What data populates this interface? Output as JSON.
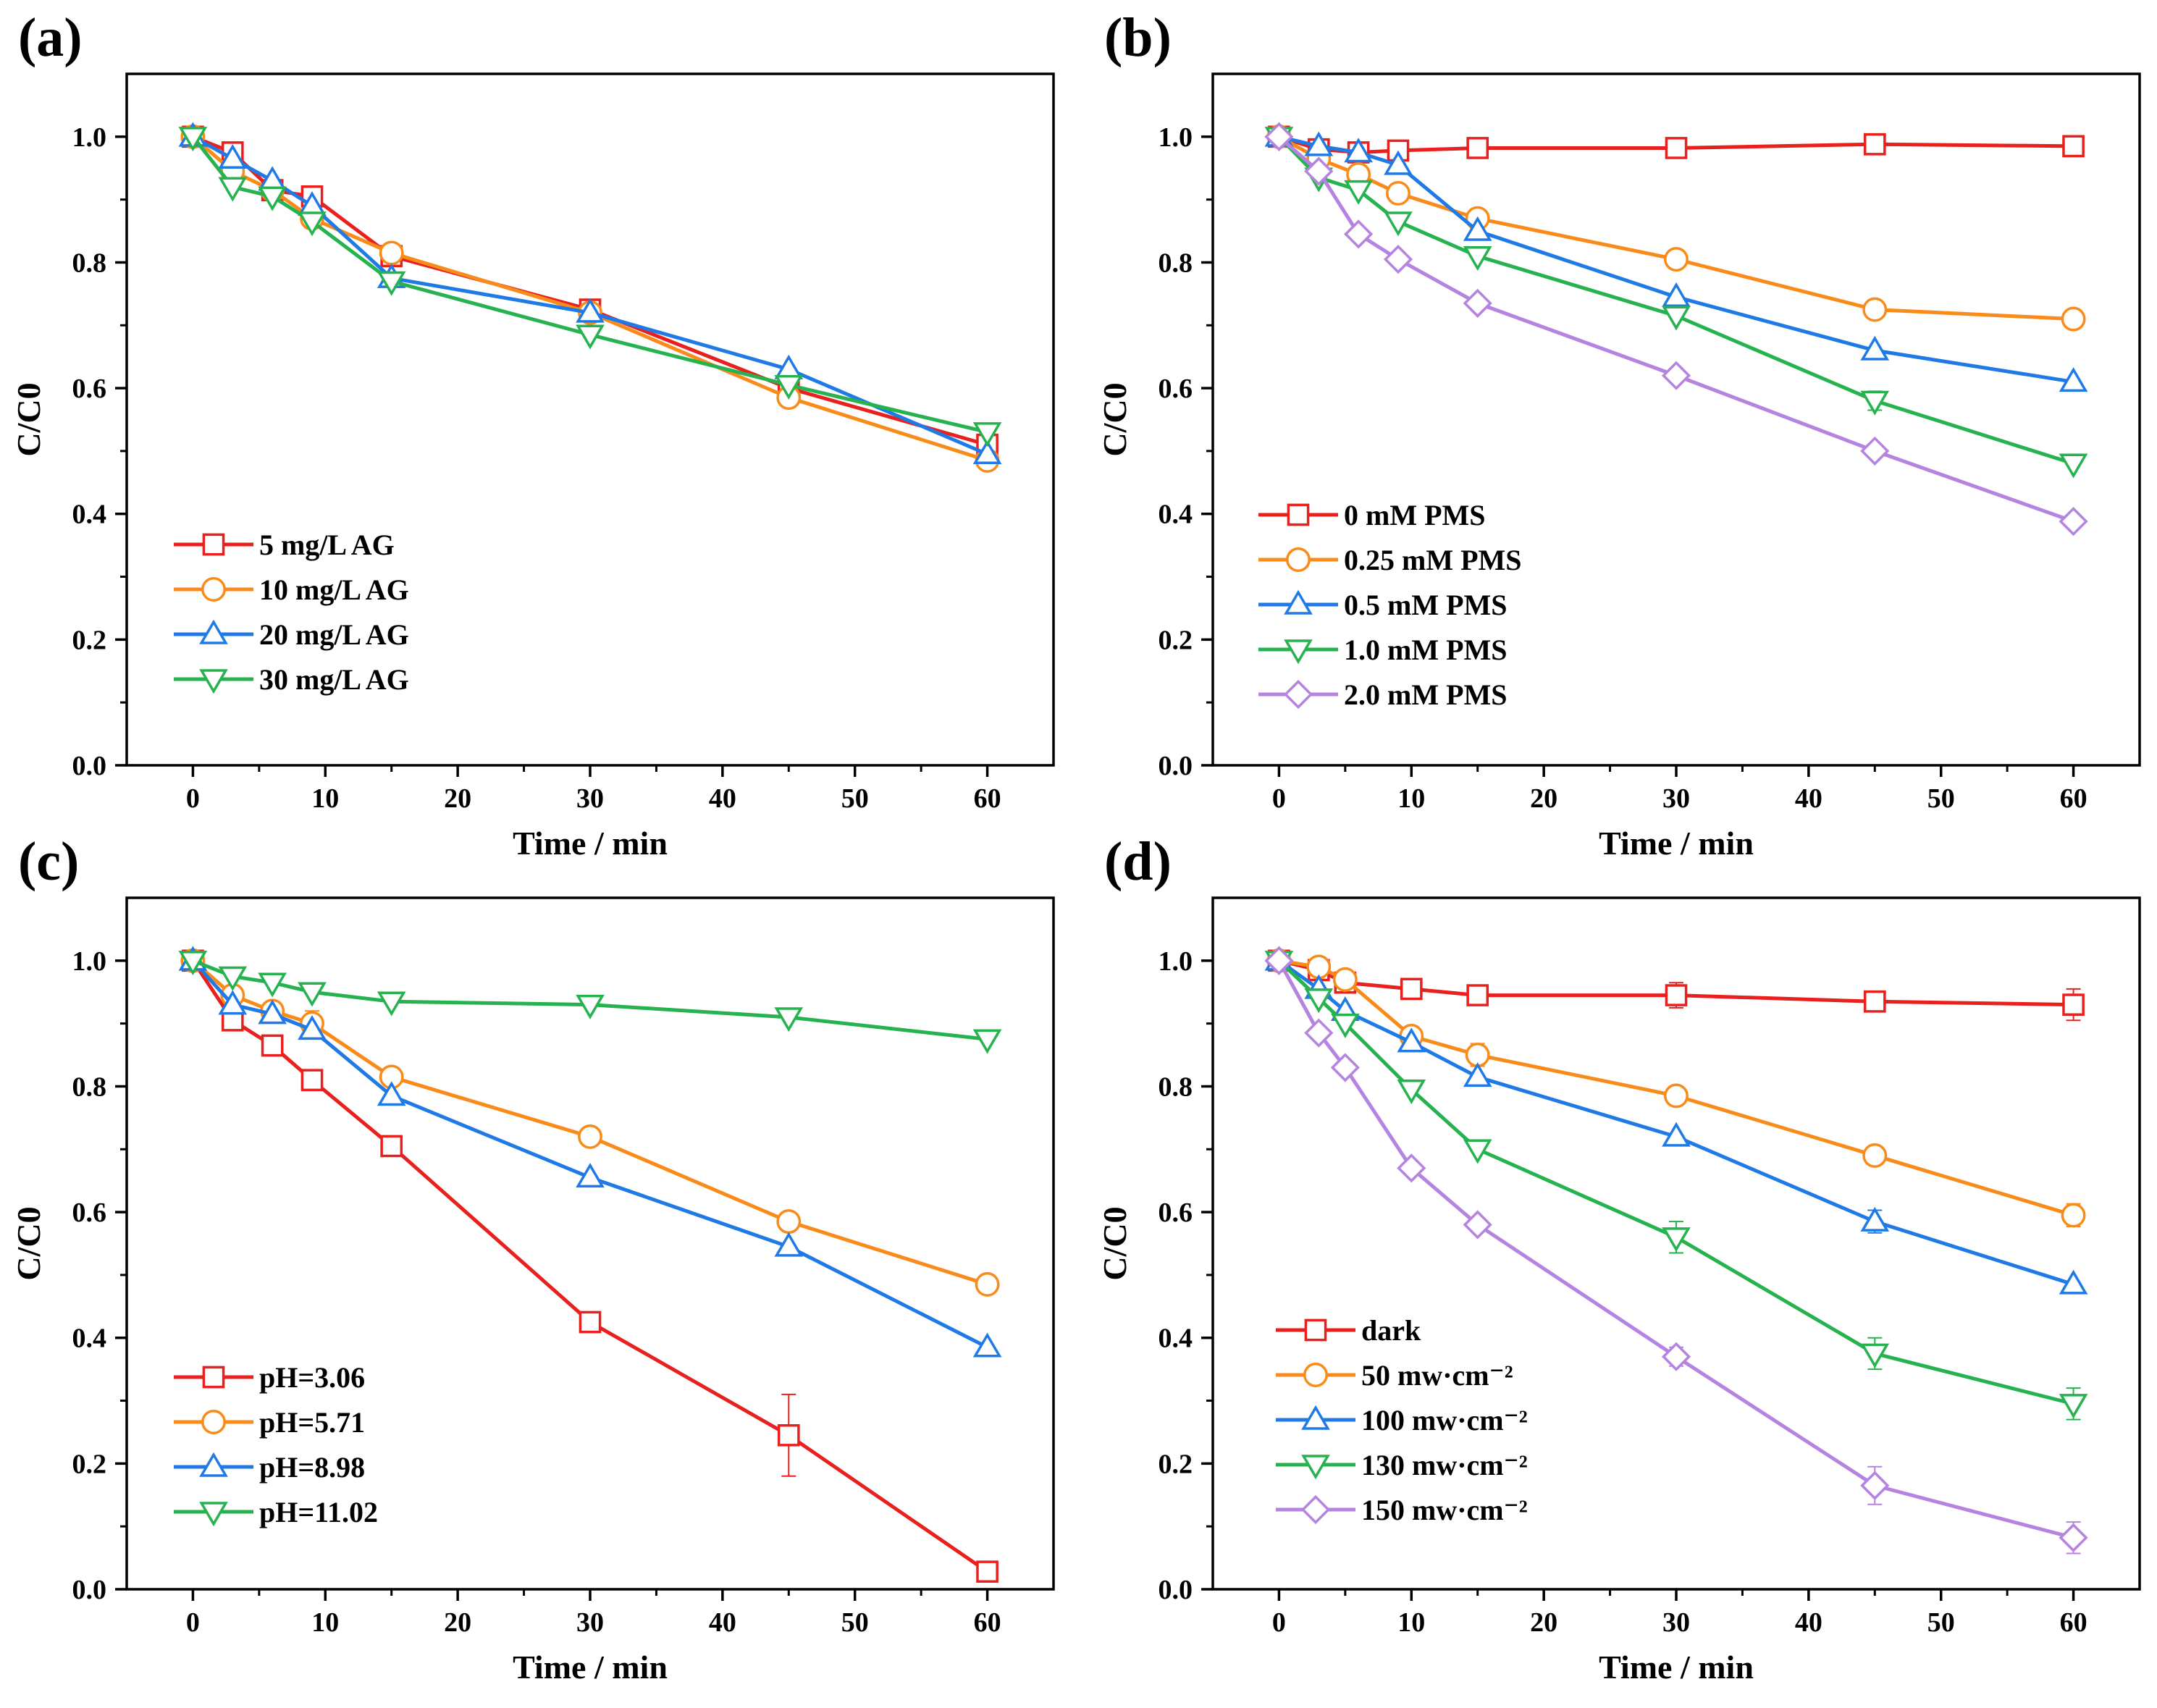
{
  "chart_data": [
    {
      "type": "line",
      "panel": "(a)",
      "xlabel": "Time / min",
      "ylabel": "C/C0",
      "xlim": [
        -5,
        65
      ],
      "ylim": [
        0,
        1.1
      ],
      "xticks": [
        0,
        10,
        20,
        30,
        40,
        50,
        60
      ],
      "yticks": [
        0.0,
        0.2,
        0.4,
        0.6,
        0.8,
        1.0
      ],
      "legend_position": "bottom-left",
      "series": [
        {
          "name": " 5 mg/L AG",
          "marker": "square",
          "color": "#e8201e",
          "x": [
            0,
            3,
            6,
            9,
            15,
            30,
            45,
            60
          ],
          "y": [
            1.0,
            0.975,
            0.915,
            0.905,
            0.81,
            0.725,
            0.6,
            0.51
          ],
          "err": [
            0,
            0,
            0,
            0,
            0,
            0,
            0,
            0
          ]
        },
        {
          "name": "10 mg/L AG",
          "marker": "circle",
          "color": "#f98b1a",
          "x": [
            0,
            3,
            6,
            9,
            15,
            30,
            45,
            60
          ],
          "y": [
            1.0,
            0.945,
            0.915,
            0.87,
            0.815,
            0.72,
            0.585,
            0.485
          ],
          "err": [
            0,
            0,
            0,
            0,
            0,
            0,
            0.015,
            0
          ]
        },
        {
          "name": "20 mg/L AG",
          "marker": "triangle-up",
          "color": "#1f7ae5",
          "x": [
            0,
            3,
            6,
            9,
            15,
            30,
            45,
            60
          ],
          "y": [
            1.0,
            0.965,
            0.93,
            0.89,
            0.775,
            0.72,
            0.63,
            0.495
          ],
          "err": [
            0,
            0,
            0,
            0,
            0,
            0,
            0,
            0
          ]
        },
        {
          "name": "30 mg/L AG",
          "marker": "triangle-down",
          "color": "#26b34f",
          "x": [
            0,
            3,
            6,
            9,
            15,
            30,
            45,
            60
          ],
          "y": [
            1.0,
            0.92,
            0.905,
            0.865,
            0.77,
            0.685,
            0.605,
            0.53
          ],
          "err": [
            0,
            0,
            0,
            0,
            0,
            0,
            0,
            0
          ]
        }
      ]
    },
    {
      "type": "line",
      "panel": "(b)",
      "xlabel": "Time / min",
      "ylabel": "C/C0",
      "xlim": [
        -5,
        65
      ],
      "ylim": [
        0,
        1.1
      ],
      "xticks": [
        0,
        10,
        20,
        30,
        40,
        50,
        60
      ],
      "yticks": [
        0.0,
        0.2,
        0.4,
        0.6,
        0.8,
        1.0
      ],
      "legend_position": "bottom-left",
      "series": [
        {
          "name": "0 mM PMS",
          "marker": "square",
          "color": "#e8201e",
          "x": [
            0,
            3,
            6,
            9,
            15,
            30,
            45,
            60
          ],
          "y": [
            1.0,
            0.98,
            0.975,
            0.978,
            0.982,
            0.982,
            0.988,
            0.985
          ],
          "err": [
            0,
            0,
            0,
            0,
            0,
            0,
            0,
            0
          ]
        },
        {
          "name": "0.25 mM PMS",
          "marker": "circle",
          "color": "#f98b1a",
          "x": [
            0,
            3,
            6,
            9,
            15,
            30,
            45,
            60
          ],
          "y": [
            1.0,
            0.965,
            0.94,
            0.91,
            0.87,
            0.805,
            0.725,
            0.71
          ],
          "err": [
            0,
            0,
            0,
            0,
            0,
            0,
            0.015,
            0
          ]
        },
        {
          "name": "0.5 mM PMS",
          "marker": "triangle-up",
          "color": "#1f7ae5",
          "x": [
            0,
            3,
            6,
            9,
            15,
            30,
            45,
            60
          ],
          "y": [
            1.0,
            0.985,
            0.975,
            0.955,
            0.85,
            0.745,
            0.66,
            0.61
          ],
          "err": [
            0,
            0,
            0,
            0,
            0,
            0,
            0,
            0
          ]
        },
        {
          "name": "1.0 mM PMS",
          "marker": "triangle-down",
          "color": "#26b34f",
          "x": [
            0,
            3,
            6,
            9,
            15,
            30,
            45,
            60
          ],
          "y": [
            1.0,
            0.935,
            0.915,
            0.865,
            0.81,
            0.715,
            0.58,
            0.48
          ],
          "err": [
            0,
            0,
            0,
            0,
            0,
            0,
            0.015,
            0
          ]
        },
        {
          "name": "2.0 mM PMS",
          "marker": "diamond",
          "color": "#b583e0",
          "x": [
            0,
            3,
            6,
            9,
            15,
            30,
            45,
            60
          ],
          "y": [
            1.0,
            0.945,
            0.845,
            0.805,
            0.735,
            0.62,
            0.5,
            0.388
          ],
          "err": [
            0,
            0,
            0,
            0,
            0,
            0,
            0,
            0
          ]
        }
      ]
    },
    {
      "type": "line",
      "panel": "(c)",
      "xlabel": "Time / min",
      "ylabel": "C/C0",
      "xlim": [
        -5,
        65
      ],
      "ylim": [
        0,
        1.1
      ],
      "xticks": [
        0,
        10,
        20,
        30,
        40,
        50,
        60
      ],
      "yticks": [
        0.0,
        0.2,
        0.4,
        0.6,
        0.8,
        1.0
      ],
      "legend_position": "bottom-left",
      "series": [
        {
          "name": "pH=3.06",
          "marker": "square",
          "color": "#e8201e",
          "x": [
            0,
            3,
            6,
            9,
            15,
            30,
            45,
            60
          ],
          "y": [
            1.0,
            0.905,
            0.865,
            0.81,
            0.705,
            0.425,
            0.245,
            0.028
          ],
          "err": [
            0,
            0,
            0,
            0,
            0,
            0,
            0.065,
            0
          ]
        },
        {
          "name": "pH=5.71",
          "marker": "circle",
          "color": "#f98b1a",
          "x": [
            0,
            3,
            6,
            9,
            15,
            30,
            45,
            60
          ],
          "y": [
            1.0,
            0.945,
            0.92,
            0.9,
            0.815,
            0.72,
            0.585,
            0.485
          ],
          "err": [
            0,
            0,
            0,
            0.02,
            0,
            0,
            0.015,
            0
          ]
        },
        {
          "name": "pH=8.98",
          "marker": "triangle-up",
          "color": "#1f7ae5",
          "x": [
            0,
            3,
            6,
            9,
            15,
            30,
            45,
            60
          ],
          "y": [
            1.0,
            0.93,
            0.915,
            0.89,
            0.785,
            0.655,
            0.545,
            0.385
          ],
          "err": [
            0,
            0,
            0,
            0,
            0,
            0,
            0,
            0
          ]
        },
        {
          "name": "pH=11.02",
          "marker": "triangle-down",
          "color": "#26b34f",
          "x": [
            0,
            3,
            6,
            9,
            15,
            30,
            45,
            60
          ],
          "y": [
            1.0,
            0.975,
            0.965,
            0.95,
            0.935,
            0.93,
            0.91,
            0.875
          ],
          "err": [
            0,
            0,
            0,
            0,
            0,
            0,
            0,
            0
          ]
        }
      ]
    },
    {
      "type": "line",
      "panel": "(d)",
      "xlabel": "Time / min",
      "ylabel": "C/C0",
      "xlim": [
        -5,
        65
      ],
      "ylim": [
        0,
        1.1
      ],
      "xticks": [
        0,
        10,
        20,
        30,
        40,
        50,
        60
      ],
      "yticks": [
        0.0,
        0.2,
        0.4,
        0.6,
        0.8,
        1.0
      ],
      "legend_position": "bottom-left",
      "series": [
        {
          "name": "dark",
          "marker": "square",
          "color": "#e8201e",
          "x": [
            0,
            3,
            5,
            10,
            15,
            30,
            45,
            60
          ],
          "y": [
            1.0,
            0.985,
            0.965,
            0.955,
            0.945,
            0.945,
            0.935,
            0.93
          ],
          "err": [
            0,
            0,
            0,
            0,
            0,
            0.02,
            0,
            0.025
          ]
        },
        {
          "name": "50 mw·cm⁻²",
          "marker": "circle",
          "color": "#f98b1a",
          "x": [
            0,
            3,
            5,
            10,
            15,
            30,
            45,
            60
          ],
          "y": [
            1.0,
            0.99,
            0.97,
            0.88,
            0.85,
            0.785,
            0.69,
            0.595
          ],
          "err": [
            0,
            0,
            0,
            0,
            0.018,
            0,
            0,
            0.018
          ]
        },
        {
          "name": "100 mw·cm⁻²",
          "marker": "triangle-up",
          "color": "#1f7ae5",
          "x": [
            0,
            3,
            5,
            10,
            15,
            30,
            45,
            60
          ],
          "y": [
            1.0,
            0.955,
            0.92,
            0.87,
            0.815,
            0.72,
            0.585,
            0.485
          ],
          "err": [
            0,
            0,
            0,
            0,
            0,
            0,
            0.018,
            0
          ]
        },
        {
          "name": "130 mw·cm⁻²",
          "marker": "triangle-down",
          "color": "#26b34f",
          "x": [
            0,
            3,
            5,
            10,
            15,
            30,
            45,
            60
          ],
          "y": [
            1.0,
            0.94,
            0.9,
            0.795,
            0.7,
            0.56,
            0.375,
            0.295
          ],
          "err": [
            0,
            0,
            0,
            0,
            0,
            0.025,
            0.025,
            0.025
          ]
        },
        {
          "name": "150 mw·cm⁻²",
          "marker": "diamond",
          "color": "#b583e0",
          "x": [
            0,
            3,
            5,
            10,
            15,
            30,
            45,
            60
          ],
          "y": [
            1.0,
            0.885,
            0.83,
            0.67,
            0.58,
            0.37,
            0.165,
            0.082
          ],
          "err": [
            0,
            0,
            0,
            0,
            0,
            0.015,
            0.03,
            0.025
          ]
        }
      ]
    }
  ]
}
